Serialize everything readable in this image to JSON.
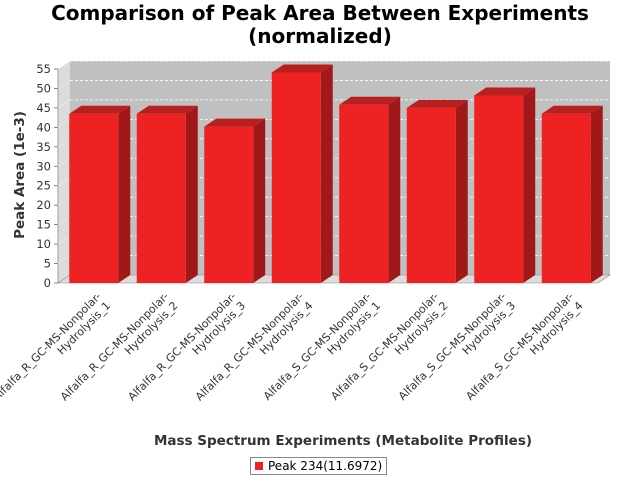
{
  "chart_data": {
    "type": "bar",
    "title": "Comparison of Peak Area Between Experiments (normalized)",
    "xlabel": "Mass Spectrum Experiments (Metabolite Profiles)",
    "ylabel": "Peak Area (1e-3)",
    "ylim": [
      0,
      55
    ],
    "yticks": [
      0,
      5,
      10,
      15,
      20,
      25,
      30,
      35,
      40,
      45,
      50,
      55
    ],
    "grid": true,
    "legend_position": "bottom",
    "categories": [
      [
        "Alfalfa_R_GC-MS-Nonpolar-",
        "Hydrolysis_1"
      ],
      [
        "Alfalfa_R_GC-MS-Nonpolar-",
        "Hydrolysis_2"
      ],
      [
        "Alfalfa_R_GC-MS-Nonpolar-",
        "Hydrolysis_3"
      ],
      [
        "Alfalfa_R_GC-MS-Nonpolar-",
        "Hydrolysis_4"
      ],
      [
        "Alfalfa_S_GC-MS-Nonpolar-",
        "Hydrolysis_1"
      ],
      [
        "Alfalfa_S_GC-MS-Nonpolar-",
        "Hydrolysis_2"
      ],
      [
        "Alfalfa_S_GC-MS-Nonpolar-",
        "Hydrolysis_3"
      ],
      [
        "Alfalfa_S_GC-MS-Nonpolar-",
        "Hydrolysis_4"
      ]
    ],
    "series": [
      {
        "name": "Peak 234(11.6972)",
        "color": "#ee2222",
        "values": [
          43.5,
          43.5,
          40.2,
          54.1,
          45.8,
          45.0,
          48.2,
          43.5
        ]
      }
    ]
  },
  "colors": {
    "plot_background": "#c0c0c0",
    "plot_wall": "#dcdcdc",
    "bar_front": "#ee2222",
    "bar_top": "#b82020",
    "bar_side": "#a01818"
  }
}
